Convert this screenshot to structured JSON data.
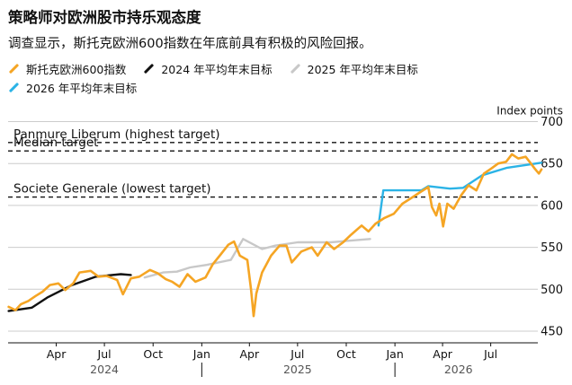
{
  "header": {
    "title": "策略师对欧洲股市持乐观态度",
    "subtitle": "调查显示，斯托克欧洲600指数在年底前具有积极的风险回报。"
  },
  "colors": {
    "stoxx": "#f5a524",
    "target_2024": "#111111",
    "target_2025": "#c8c8c8",
    "target_2026": "#2bb3e6",
    "grid": "#cccccc",
    "axis_text": "#111111"
  },
  "chart_data": {
    "type": "line",
    "title": "策略师对欧洲股市持乐观态度",
    "subtitle": "调查显示，斯托克欧洲600指数在年底前具有积极的风险回报。",
    "y_axis_label": "Index points",
    "ylim": [
      440,
      710
    ],
    "y_ticks": [
      450,
      500,
      550,
      600,
      650,
      700
    ],
    "xlim": [
      "2024-01-01",
      "2026-11-01"
    ],
    "x_ticks": [
      {
        "date": "2024-04-01",
        "label": "Apr"
      },
      {
        "date": "2024-07-01",
        "label": "Jul"
      },
      {
        "date": "2024-10-01",
        "label": "Oct"
      },
      {
        "date": "2025-01-01",
        "label": "Jan"
      },
      {
        "date": "2025-04-01",
        "label": "Apr"
      },
      {
        "date": "2025-07-01",
        "label": "Jul"
      },
      {
        "date": "2025-10-01",
        "label": "Oct"
      },
      {
        "date": "2026-01-01",
        "label": "Jan"
      },
      {
        "date": "2026-04-01",
        "label": "Apr"
      },
      {
        "date": "2026-07-01",
        "label": "Jul"
      }
    ],
    "year_labels": [
      {
        "date": "2024-07-01",
        "label": "2024"
      },
      {
        "date": "2025-07-01",
        "label": "2025"
      },
      {
        "date": "2026-05-01",
        "label": "2026"
      }
    ],
    "year_separators": [
      "2025-01-01",
      "2026-01-01"
    ],
    "grid": true,
    "legend_position": "top-left",
    "reference_lines": [
      {
        "label": "Panmure Liberum (highest target)",
        "value": 675
      },
      {
        "label": "Median target",
        "value": 665
      },
      {
        "label": "Societe Generale (lowest target)",
        "value": 610
      }
    ],
    "series": [
      {
        "name": "斯托克欧洲600指数",
        "color": "#f5a524",
        "points": [
          [
            "2024-01-02",
            479
          ],
          [
            "2024-01-15",
            475
          ],
          [
            "2024-01-25",
            482
          ],
          [
            "2024-02-08",
            486
          ],
          [
            "2024-02-22",
            492
          ],
          [
            "2024-03-06",
            497
          ],
          [
            "2024-03-20",
            505
          ],
          [
            "2024-04-05",
            507
          ],
          [
            "2024-04-18",
            499
          ],
          [
            "2024-05-03",
            507
          ],
          [
            "2024-05-15",
            520
          ],
          [
            "2024-06-05",
            522
          ],
          [
            "2024-06-20",
            515
          ],
          [
            "2024-07-05",
            516
          ],
          [
            "2024-07-25",
            511
          ],
          [
            "2024-08-05",
            494
          ],
          [
            "2024-08-20",
            513
          ],
          [
            "2024-09-05",
            515
          ],
          [
            "2024-09-25",
            523
          ],
          [
            "2024-10-10",
            519
          ],
          [
            "2024-10-25",
            512
          ],
          [
            "2024-11-06",
            509
          ],
          [
            "2024-11-20",
            503
          ],
          [
            "2024-12-05",
            518
          ],
          [
            "2024-12-20",
            509
          ],
          [
            "2025-01-08",
            514
          ],
          [
            "2025-01-22",
            530
          ],
          [
            "2025-02-05",
            541
          ],
          [
            "2025-02-20",
            553
          ],
          [
            "2025-03-03",
            557
          ],
          [
            "2025-03-14",
            540
          ],
          [
            "2025-03-28",
            535
          ],
          [
            "2025-04-04",
            500
          ],
          [
            "2025-04-09",
            468
          ],
          [
            "2025-04-14",
            495
          ],
          [
            "2025-04-25",
            520
          ],
          [
            "2025-05-12",
            540
          ],
          [
            "2025-05-28",
            552
          ],
          [
            "2025-06-10",
            552
          ],
          [
            "2025-06-20",
            532
          ],
          [
            "2025-07-08",
            545
          ],
          [
            "2025-07-28",
            550
          ],
          [
            "2025-08-08",
            540
          ],
          [
            "2025-08-25",
            556
          ],
          [
            "2025-09-08",
            548
          ],
          [
            "2025-09-25",
            556
          ],
          [
            "2025-10-10",
            565
          ],
          [
            "2025-10-30",
            576
          ],
          [
            "2025-11-12",
            569
          ],
          [
            "2025-11-25",
            578
          ],
          [
            "2025-12-12",
            585
          ],
          [
            "2025-12-30",
            590
          ],
          [
            "2026-01-15",
            602
          ],
          [
            "2026-01-30",
            608
          ],
          [
            "2026-02-18",
            616
          ],
          [
            "2026-03-05",
            622
          ],
          [
            "2026-03-12",
            598
          ],
          [
            "2026-03-20",
            588
          ],
          [
            "2026-03-26",
            602
          ],
          [
            "2026-04-02",
            575
          ],
          [
            "2026-04-10",
            602
          ],
          [
            "2026-04-22",
            596
          ],
          [
            "2026-05-06",
            612
          ],
          [
            "2026-05-20",
            624
          ],
          [
            "2026-06-04",
            618
          ],
          [
            "2026-06-18",
            638
          ],
          [
            "2026-07-02",
            644
          ],
          [
            "2026-07-15",
            650
          ],
          [
            "2026-07-30",
            652
          ],
          [
            "2026-08-10",
            661
          ],
          [
            "2026-08-22",
            656
          ],
          [
            "2026-09-05",
            658
          ],
          [
            "2026-09-15",
            650
          ],
          [
            "2026-09-22",
            644
          ],
          [
            "2026-09-30",
            638
          ],
          [
            "2026-10-05",
            643
          ]
        ]
      },
      {
        "name": "2024 年平均年末目标",
        "color": "#111111",
        "points": [
          [
            "2024-01-02",
            474
          ],
          [
            "2024-02-15",
            478
          ],
          [
            "2024-03-15",
            490
          ],
          [
            "2024-05-01",
            505
          ],
          [
            "2024-06-15",
            515
          ],
          [
            "2024-08-01",
            518
          ],
          [
            "2024-08-20",
            517
          ]
        ]
      },
      {
        "name": "2025 年平均年末目标",
        "color": "#c8c8c8",
        "points": [
          [
            "2024-09-15",
            514
          ],
          [
            "2024-10-20",
            520
          ],
          [
            "2024-11-15",
            521
          ],
          [
            "2024-12-10",
            526
          ],
          [
            "2025-01-10",
            529
          ],
          [
            "2025-02-25",
            535
          ],
          [
            "2025-03-20",
            560
          ],
          [
            "2025-04-25",
            548
          ],
          [
            "2025-05-20",
            552
          ],
          [
            "2025-07-01",
            556
          ],
          [
            "2025-09-01",
            556
          ],
          [
            "2025-11-15",
            560
          ]
        ]
      },
      {
        "name": "2026 年平均年末目标",
        "color": "#2bb3e6",
        "points": [
          [
            "2025-12-01",
            576
          ],
          [
            "2025-12-10",
            618
          ],
          [
            "2026-01-15",
            618
          ],
          [
            "2026-02-20",
            618
          ],
          [
            "2026-03-05",
            623
          ],
          [
            "2026-04-15",
            620
          ],
          [
            "2026-05-10",
            621
          ],
          [
            "2026-06-15",
            636
          ],
          [
            "2026-08-01",
            645
          ],
          [
            "2026-10-05",
            651
          ]
        ]
      }
    ]
  }
}
